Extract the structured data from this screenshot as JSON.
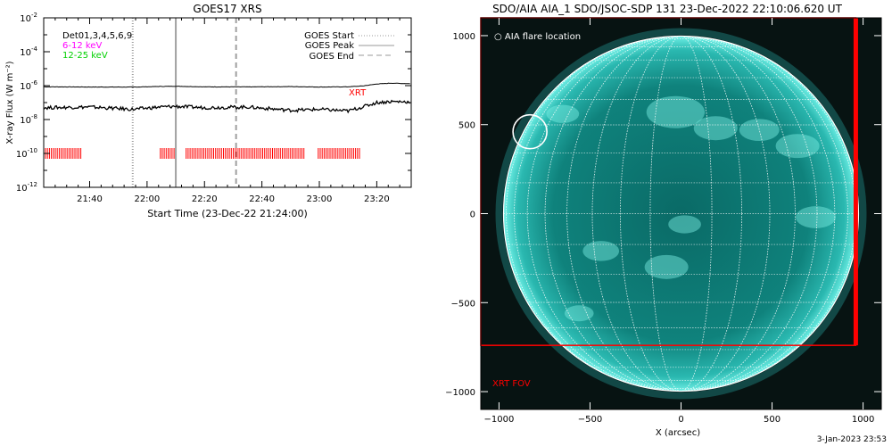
{
  "footer_date": "3-Jan-2023 23:53",
  "chart_data": [
    {
      "type": "line",
      "title": "GOES17 XRS",
      "xlabel": "Start Time (23-Dec-22 21:24:00)",
      "ylabel": "X-ray Flux (W m⁻²)",
      "yscale": "log",
      "xlim": [
        "21:24",
        "23:32"
      ],
      "ylim": [
        1e-12,
        0.01
      ],
      "x_ticks": [
        "21:40",
        "22:00",
        "22:20",
        "22:40",
        "23:00",
        "23:20"
      ],
      "y_ticks": [
        {
          "value": 1e-12,
          "label": "10",
          "exp": "-12"
        },
        {
          "value": 1e-10,
          "label": "10",
          "exp": "-10"
        },
        {
          "value": 1e-08,
          "label": "10",
          "exp": "-8"
        },
        {
          "value": 1e-06,
          "label": "10",
          "exp": "-6"
        },
        {
          "value": 0.0001,
          "label": "10",
          "exp": "-4"
        },
        {
          "value": 0.01,
          "label": "10",
          "exp": "-2"
        }
      ],
      "legend_left": [
        {
          "label": "Det01,3,4,5,6,9",
          "color": "#000000"
        },
        {
          "label": "6-12 keV",
          "color": "#ff00ff"
        },
        {
          "label": "12-25 keV",
          "color": "#00d000"
        }
      ],
      "legend_right": [
        {
          "label": "GOES Start",
          "dash": "dotted"
        },
        {
          "label": "GOES Peak",
          "dash": "solid"
        },
        {
          "label": "GOES End",
          "dash": "dashed"
        }
      ],
      "vlines": [
        {
          "name": "GOES Start",
          "time": "21:55",
          "color": "#a0a0a0",
          "dash": "1,2"
        },
        {
          "name": "GOES Peak",
          "time": "22:10",
          "color": "#a0a0a0",
          "dash": ""
        },
        {
          "name": "GOES End",
          "time": "22:31",
          "color": "#a0a0a0",
          "dash": "6,4"
        }
      ],
      "series": [
        {
          "color": "#000000",
          "points": [
            [
              "21:24",
              8.5e-07
            ],
            [
              "21:40",
              8.3e-07
            ],
            [
              "21:55",
              8.2e-07
            ],
            [
              "22:05",
              9e-07
            ],
            [
              "22:10",
              9.2e-07
            ],
            [
              "22:20",
              8.5e-07
            ],
            [
              "22:35",
              8.4e-07
            ],
            [
              "22:50",
              8.8e-07
            ],
            [
              "23:00",
              8.3e-07
            ],
            [
              "23:10",
              8.5e-07
            ],
            [
              "23:15",
              9.5e-07
            ],
            [
              "23:20",
              1.25e-06
            ],
            [
              "23:25",
              1.4e-06
            ],
            [
              "23:32",
              1.3e-06
            ]
          ]
        },
        {
          "color": "#000000",
          "points": [
            [
              "21:24",
              5e-08
            ],
            [
              "21:40",
              5.5e-08
            ],
            [
              "21:55",
              4e-08
            ],
            [
              "22:05",
              5.5e-08
            ],
            [
              "22:10",
              6e-08
            ],
            [
              "22:20",
              5e-08
            ],
            [
              "22:35",
              5.5e-08
            ],
            [
              "22:50",
              3.5e-08
            ],
            [
              "23:00",
              4e-08
            ],
            [
              "23:10",
              3.2e-08
            ],
            [
              "23:15",
              5.5e-08
            ],
            [
              "23:20",
              1e-07
            ],
            [
              "23:25",
              1.15e-07
            ],
            [
              "23:32",
              1.1e-07
            ]
          ]
        }
      ],
      "xrt_label": "XRT",
      "xrt_label_color": "#ff0000",
      "xrt_exposures": {
        "color": "#ff0000",
        "flux": 1e-10,
        "ranges": [
          [
            "21:24",
            "21:37"
          ],
          [
            "22:04",
            "22:10"
          ],
          [
            "22:13",
            "22:55"
          ],
          [
            "22:59",
            "23:14"
          ]
        ]
      }
    },
    {
      "type": "image",
      "title": "SDO/AIA AIA_1 SDO/JSOC-SDP 131 23-Dec-2022 22:10:06.620 UT",
      "xlabel": "X (arcsec)",
      "ylabel": "",
      "xlim": [
        -1100,
        1100
      ],
      "ylim": [
        -1100,
        1100
      ],
      "x_ticks": [
        "-1000",
        "-500",
        "0",
        "500",
        "1000"
      ],
      "y_ticks": [
        "1000",
        "500",
        "0",
        "-500",
        "-1000"
      ],
      "disk_radius_arcsec": 975,
      "disk_color": "#2ab8b0",
      "legend": "○ AIA flare location",
      "flare_location": [
        -830,
        460
      ],
      "xrt_fov": {
        "label": "XRT FOV",
        "color": "#ff0000",
        "x": [
          -1100,
          960
        ],
        "y": [
          -740,
          1100
        ]
      }
    }
  ]
}
